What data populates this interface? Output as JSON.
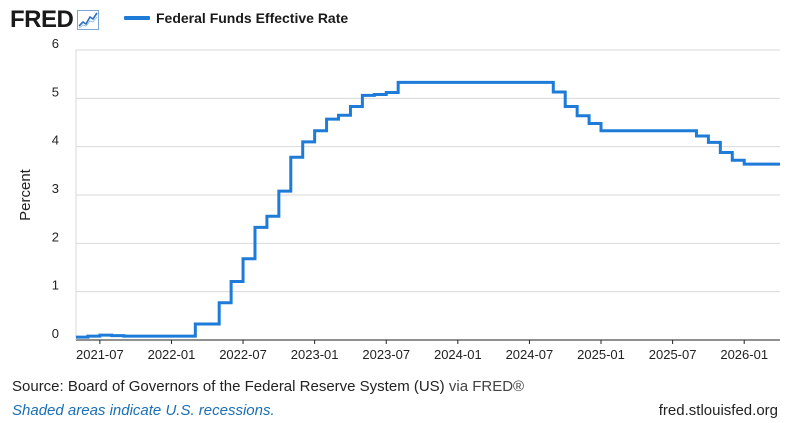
{
  "header": {
    "logo_text": "FRED",
    "logo_icon": "line-graph-icon",
    "series_label": "Federal Funds Effective Rate",
    "series_color": "#1f7bd8"
  },
  "footer": {
    "source": "Source: Board of Governors of the Federal Reserve System (US)",
    "via": " via FRED®",
    "recession_note": "Shaded areas indicate U.S. recessions.",
    "site": "fred.stlouisfed.org"
  },
  "chart_data": {
    "type": "line",
    "series": [
      {
        "name": "Federal Funds Effective Rate",
        "color": "#1f7bd8",
        "step": true,
        "points": [
          [
            "2021-05",
            0.06
          ],
          [
            "2021-06",
            0.08
          ],
          [
            "2021-07",
            0.1
          ],
          [
            "2021-08",
            0.09
          ],
          [
            "2021-09",
            0.08
          ],
          [
            "2021-10",
            0.08
          ],
          [
            "2021-11",
            0.08
          ],
          [
            "2021-12",
            0.08
          ],
          [
            "2022-01",
            0.08
          ],
          [
            "2022-02",
            0.08
          ],
          [
            "2022-03",
            0.33
          ],
          [
            "2022-04",
            0.33
          ],
          [
            "2022-05",
            0.77
          ],
          [
            "2022-06",
            1.21
          ],
          [
            "2022-07",
            1.68
          ],
          [
            "2022-08",
            2.33
          ],
          [
            "2022-09",
            2.56
          ],
          [
            "2022-10",
            3.08
          ],
          [
            "2022-11",
            3.78
          ],
          [
            "2022-12",
            4.1
          ],
          [
            "2023-01",
            4.33
          ],
          [
            "2023-02",
            4.57
          ],
          [
            "2023-03",
            4.65
          ],
          [
            "2023-04",
            4.83
          ],
          [
            "2023-05",
            5.06
          ],
          [
            "2023-06",
            5.08
          ],
          [
            "2023-07",
            5.12
          ],
          [
            "2023-08",
            5.33
          ],
          [
            "2023-09",
            5.33
          ],
          [
            "2023-10",
            5.33
          ],
          [
            "2023-11",
            5.33
          ],
          [
            "2023-12",
            5.33
          ],
          [
            "2024-01",
            5.33
          ],
          [
            "2024-02",
            5.33
          ],
          [
            "2024-03",
            5.33
          ],
          [
            "2024-04",
            5.33
          ],
          [
            "2024-05",
            5.33
          ],
          [
            "2024-06",
            5.33
          ],
          [
            "2024-07",
            5.33
          ],
          [
            "2024-08",
            5.33
          ],
          [
            "2024-09",
            5.13
          ],
          [
            "2024-10",
            4.83
          ],
          [
            "2024-11",
            4.64
          ],
          [
            "2024-12",
            4.48
          ],
          [
            "2025-01",
            4.33
          ],
          [
            "2025-02",
            4.33
          ],
          [
            "2025-03",
            4.33
          ],
          [
            "2025-04",
            4.33
          ],
          [
            "2025-05",
            4.33
          ],
          [
            "2025-06",
            4.33
          ],
          [
            "2025-07",
            4.33
          ],
          [
            "2025-08",
            4.33
          ],
          [
            "2025-09",
            4.22
          ],
          [
            "2025-10",
            4.09
          ],
          [
            "2025-11",
            3.88
          ],
          [
            "2025-12",
            3.72
          ],
          [
            "2026-01",
            3.64
          ],
          [
            "2026-02",
            3.64
          ],
          [
            "2026-03",
            3.64
          ],
          [
            "2026-04",
            3.64
          ]
        ]
      }
    ],
    "xlabel": "",
    "ylabel": "Percent",
    "ylim": [
      0,
      6
    ],
    "yticks": [
      "0",
      "1",
      "2",
      "3",
      "4",
      "5",
      "6"
    ],
    "xlim": [
      "2021-05",
      "2026-04"
    ],
    "xticks": [
      "2021-07",
      "2022-01",
      "2022-07",
      "2023-01",
      "2023-07",
      "2024-01",
      "2024-07",
      "2025-01",
      "2025-07",
      "2026-01"
    ],
    "grid": "horizontal",
    "grid_color": "#d9d9d9",
    "axis_color": "#222222"
  }
}
